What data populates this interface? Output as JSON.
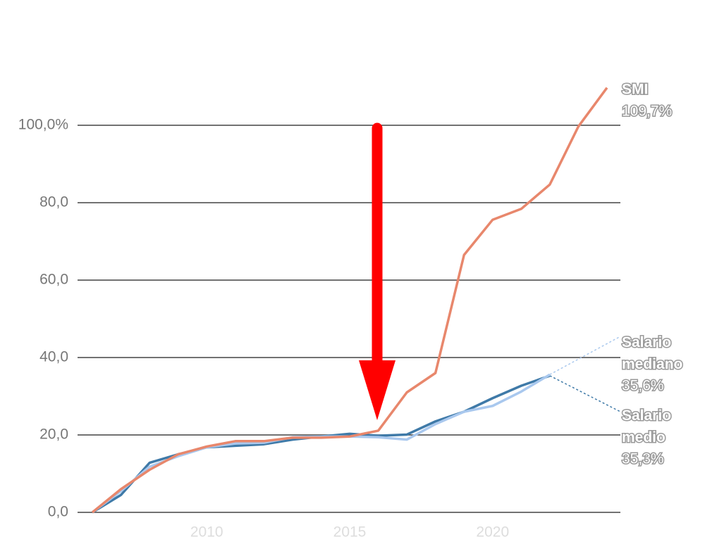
{
  "chart_data": {
    "type": "line",
    "x": [
      2006,
      2007,
      2008,
      2009,
      2010,
      2011,
      2012,
      2013,
      2014,
      2015,
      2016,
      2017,
      2018,
      2019,
      2020,
      2021,
      2022,
      2023,
      2024
    ],
    "series": [
      {
        "name": "SMI",
        "color": "#e8876c",
        "values": [
          0,
          6,
          11,
          15,
          17,
          18.4,
          18.4,
          19.3,
          19.3,
          19.6,
          21.1,
          31,
          36,
          66.5,
          75.6,
          78.4,
          84.7,
          99.7,
          109.7
        ],
        "value_labels": [
          null,
          null,
          null,
          null,
          null,
          null,
          null,
          null,
          null,
          null,
          null,
          null,
          null,
          null,
          null,
          null,
          null,
          null,
          "109,7%"
        ]
      },
      {
        "name": "Salario mediano",
        "color": "#a9c8ee",
        "values": [
          0,
          5.5,
          11.8,
          14.5,
          16.8,
          17.8,
          18,
          19.4,
          19.6,
          19.6,
          19.4,
          18.8,
          22.8,
          26,
          27.5,
          31.2,
          35.6,
          null,
          null
        ],
        "value_labels": [
          null,
          null,
          null,
          null,
          null,
          null,
          null,
          null,
          null,
          null,
          null,
          null,
          null,
          null,
          null,
          null,
          "35,6%",
          null,
          null
        ]
      },
      {
        "name": "Salario medio",
        "color": "#3f7aa8",
        "values": [
          0,
          4.5,
          12.8,
          15,
          16.8,
          17.2,
          17.6,
          18.8,
          19.6,
          20.3,
          19.8,
          20.1,
          23.5,
          26,
          29.5,
          32.7,
          35.3,
          null,
          null
        ],
        "value_labels": [
          null,
          null,
          null,
          null,
          null,
          null,
          null,
          null,
          null,
          null,
          null,
          null,
          null,
          null,
          null,
          null,
          "35,3%",
          null,
          null
        ]
      }
    ],
    "xlim": [
      2006,
      2024
    ],
    "xticks": [
      2010,
      2015,
      2020
    ],
    "ylim": [
      0,
      100
    ],
    "yticks": [
      {
        "value": 0,
        "label": "0,0"
      },
      {
        "value": 20,
        "label": "20,0"
      },
      {
        "value": 40,
        "label": "40,0"
      },
      {
        "value": 60,
        "label": "60,0"
      },
      {
        "value": 80,
        "label": "80,0"
      },
      {
        "value": 100,
        "label": "100,0%"
      }
    ],
    "grid": true
  }
}
